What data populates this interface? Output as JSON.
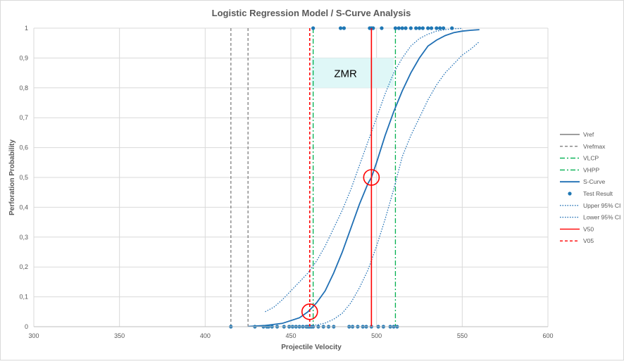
{
  "chart_data": {
    "type": "scatter",
    "title": "Logistic Regression Model / S-Curve Analysis",
    "xlabel": "Projectile Velocity",
    "ylabel": "Perforation Probability",
    "xlim": [
      300,
      600
    ],
    "ylim": [
      0,
      1
    ],
    "x_ticks": [
      "300",
      "350",
      "400",
      "450",
      "500",
      "550",
      "600"
    ],
    "y_ticks": [
      "0",
      "0,1",
      "0,2",
      "0,3",
      "0,4",
      "0,5",
      "0,6",
      "0,7",
      "0,8",
      "0,9",
      "1"
    ],
    "grid": true,
    "legend_position": "right",
    "zone_label": "ZMR",
    "zone": {
      "x": [
        462,
        510
      ],
      "y": [
        0.8,
        0.9
      ],
      "color": "#dff7f7"
    },
    "series": [
      {
        "name": "Vref",
        "kind": "vline",
        "x": null,
        "color": "#7f7f7f",
        "dash": "solid"
      },
      {
        "name": "Vrefmax",
        "kind": "vline",
        "x": [
          415,
          425
        ],
        "color": "#7f7f7f",
        "dash": "dash"
      },
      {
        "name": "VLCP",
        "kind": "vline",
        "x": 463,
        "color": "#00b050",
        "dash": "dashdot"
      },
      {
        "name": "VHPP",
        "kind": "vline",
        "x": 511,
        "color": "#00b050",
        "dash": "dashdot"
      },
      {
        "name": "S-Curve",
        "kind": "curve",
        "color": "#1f6fb4",
        "dash": "solid",
        "x": [
          425,
          435,
          445,
          455,
          460,
          465,
          470,
          475,
          480,
          485,
          490,
          495,
          497,
          500,
          505,
          510,
          515,
          520,
          525,
          530,
          535,
          540,
          545,
          550,
          555,
          560
        ],
        "y": [
          0.001,
          0.004,
          0.011,
          0.03,
          0.05,
          0.08,
          0.12,
          0.18,
          0.25,
          0.33,
          0.41,
          0.48,
          0.5,
          0.55,
          0.64,
          0.72,
          0.79,
          0.85,
          0.9,
          0.94,
          0.96,
          0.975,
          0.985,
          0.99,
          0.993,
          0.995
        ]
      },
      {
        "name": "Test Result",
        "kind": "points",
        "color": "#1f77b4",
        "x0": [
          415,
          429,
          434,
          436,
          437,
          439,
          442,
          446,
          449,
          451,
          453,
          455,
          457,
          459,
          460,
          461,
          462,
          463,
          466,
          469,
          472,
          475,
          484,
          486,
          489,
          492,
          494,
          497,
          501,
          504,
          508,
          510,
          512
        ],
        "x1": [
          463,
          479,
          481,
          496,
          497,
          498,
          503,
          511,
          513,
          515,
          517,
          520,
          523,
          525,
          527,
          530,
          532,
          535,
          537,
          539,
          544
        ]
      },
      {
        "name": "Upper 95% CI",
        "kind": "curve",
        "color": "#1f6fb4",
        "dash": "dot",
        "x": [
          435,
          440,
          445,
          450,
          455,
          460,
          465,
          470,
          475,
          480,
          485,
          490,
          495,
          500,
          505,
          510,
          515,
          520,
          525,
          530,
          535,
          540,
          545,
          550
        ],
        "y": [
          0.05,
          0.065,
          0.09,
          0.12,
          0.15,
          0.18,
          0.22,
          0.27,
          0.33,
          0.39,
          0.46,
          0.54,
          0.62,
          0.7,
          0.78,
          0.85,
          0.9,
          0.94,
          0.965,
          0.98,
          0.99,
          0.995,
          0.998,
          0.999
        ]
      },
      {
        "name": "Lower 95% CI",
        "kind": "curve",
        "color": "#1f6fb4",
        "dash": "dot",
        "x": [
          460,
          465,
          470,
          475,
          480,
          485,
          490,
          495,
          500,
          505,
          510,
          515,
          520,
          525,
          530,
          535,
          540,
          545,
          550,
          555,
          560
        ],
        "y": [
          0.002,
          0.006,
          0.012,
          0.025,
          0.045,
          0.08,
          0.13,
          0.19,
          0.27,
          0.36,
          0.46,
          0.57,
          0.64,
          0.7,
          0.76,
          0.81,
          0.85,
          0.88,
          0.91,
          0.93,
          0.955
        ]
      },
      {
        "name": "V50",
        "kind": "vline",
        "x": 497,
        "color": "#ff0000",
        "dash": "solid"
      },
      {
        "name": "V05",
        "kind": "vline",
        "x": 461,
        "color": "#ff0000",
        "dash": "dash"
      }
    ],
    "markers": [
      {
        "x": 497,
        "y": 0.5,
        "color": "#ff0000"
      },
      {
        "x": 461,
        "y": 0.05,
        "color": "#ff0000"
      }
    ]
  }
}
